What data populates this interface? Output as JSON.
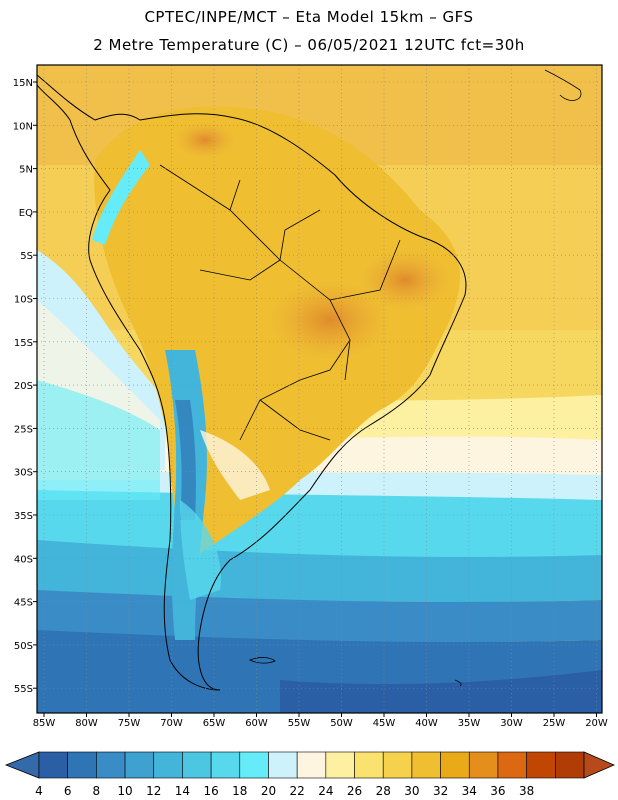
{
  "header": {
    "line1": "CPTEC/INPE/MCT –  Eta Model 15km – GFS",
    "line2": "2 Metre Temperature (C) – 06/05/2021 12UTC fct=30h"
  },
  "map": {
    "region": "South America",
    "variable": "2 Metre Temperature",
    "units": "C",
    "latitude_labels": [
      "15N",
      "10N",
      "5N",
      "EQ",
      "5S",
      "10S",
      "15S",
      "20S",
      "25S",
      "30S",
      "35S",
      "40S",
      "45S",
      "50S",
      "55S"
    ],
    "longitude_labels": [
      "85W",
      "80W",
      "75W",
      "70W",
      "65W",
      "60W",
      "55W",
      "50W",
      "45W",
      "40W",
      "35W",
      "30W",
      "25W",
      "20W"
    ]
  },
  "colorbar": {
    "ticks": [
      "4",
      "6",
      "8",
      "10",
      "12",
      "14",
      "16",
      "18",
      "20",
      "22",
      "24",
      "26",
      "28",
      "30",
      "32",
      "34",
      "36",
      "38"
    ],
    "colors": [
      "#2a5fa5",
      "#2f74b5",
      "#3a8cc6",
      "#3fa1cf",
      "#44b5da",
      "#4dc6e2",
      "#58d8ec",
      "#66ecf8",
      "#cdf2fb",
      "#fdf5e0",
      "#fdf0a0",
      "#fbe26e",
      "#f6d14b",
      "#efbe31",
      "#eaa917",
      "#e48f1c",
      "#dd6812",
      "#c24603",
      "#b13d06"
    ],
    "below_color": "#3469aa",
    "above_color": "#b74a1a"
  }
}
